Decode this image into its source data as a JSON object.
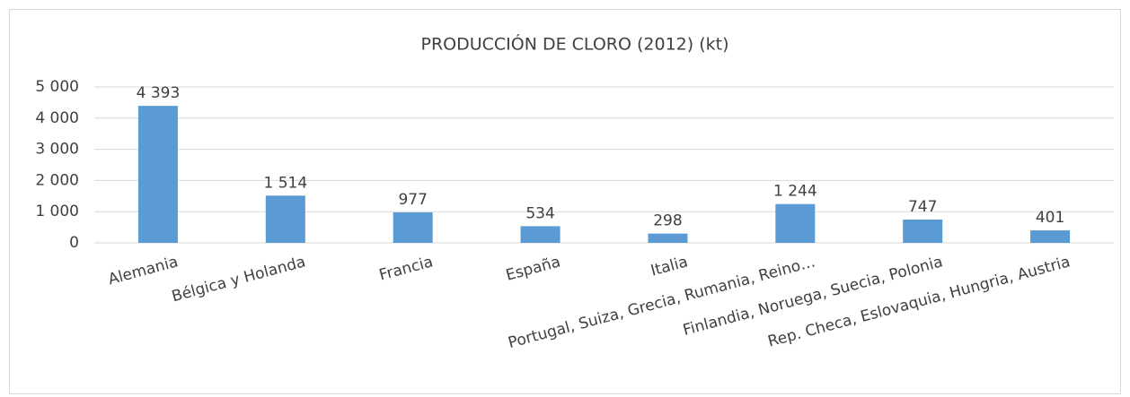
{
  "chart_data": {
    "type": "bar",
    "title": "PRODUCCIÓN DE CLORO (2012) (kt)",
    "categories": [
      "Alemania",
      "Bélgica y Holanda",
      "Francia",
      "España",
      "Italia",
      "Portugal, Suiza, Grecia, Rumania, Reino…",
      "Finlandia, Noruega, Suecia, Polonia",
      "Rep. Checa, Eslovaquia, Hungria, Austria"
    ],
    "values": [
      4393,
      1514,
      977,
      534,
      298,
      1244,
      747,
      401
    ],
    "value_labels": [
      "4 393",
      "1 514",
      "977",
      "534",
      "298",
      "1 244",
      "747",
      "401"
    ],
    "color": "#5b9bd5",
    "ylim": [
      0,
      5000
    ],
    "yticks": [
      0,
      {
        "value": 1000,
        "label": "1 000"
      },
      {
        "value": 2000,
        "label": "2 000"
      },
      {
        "value": 3000,
        "label": "3 000"
      },
      {
        "value": 4000,
        "label": "4 000"
      },
      {
        "value": 5000,
        "label": "5 000"
      }
    ],
    "grid": true
  }
}
